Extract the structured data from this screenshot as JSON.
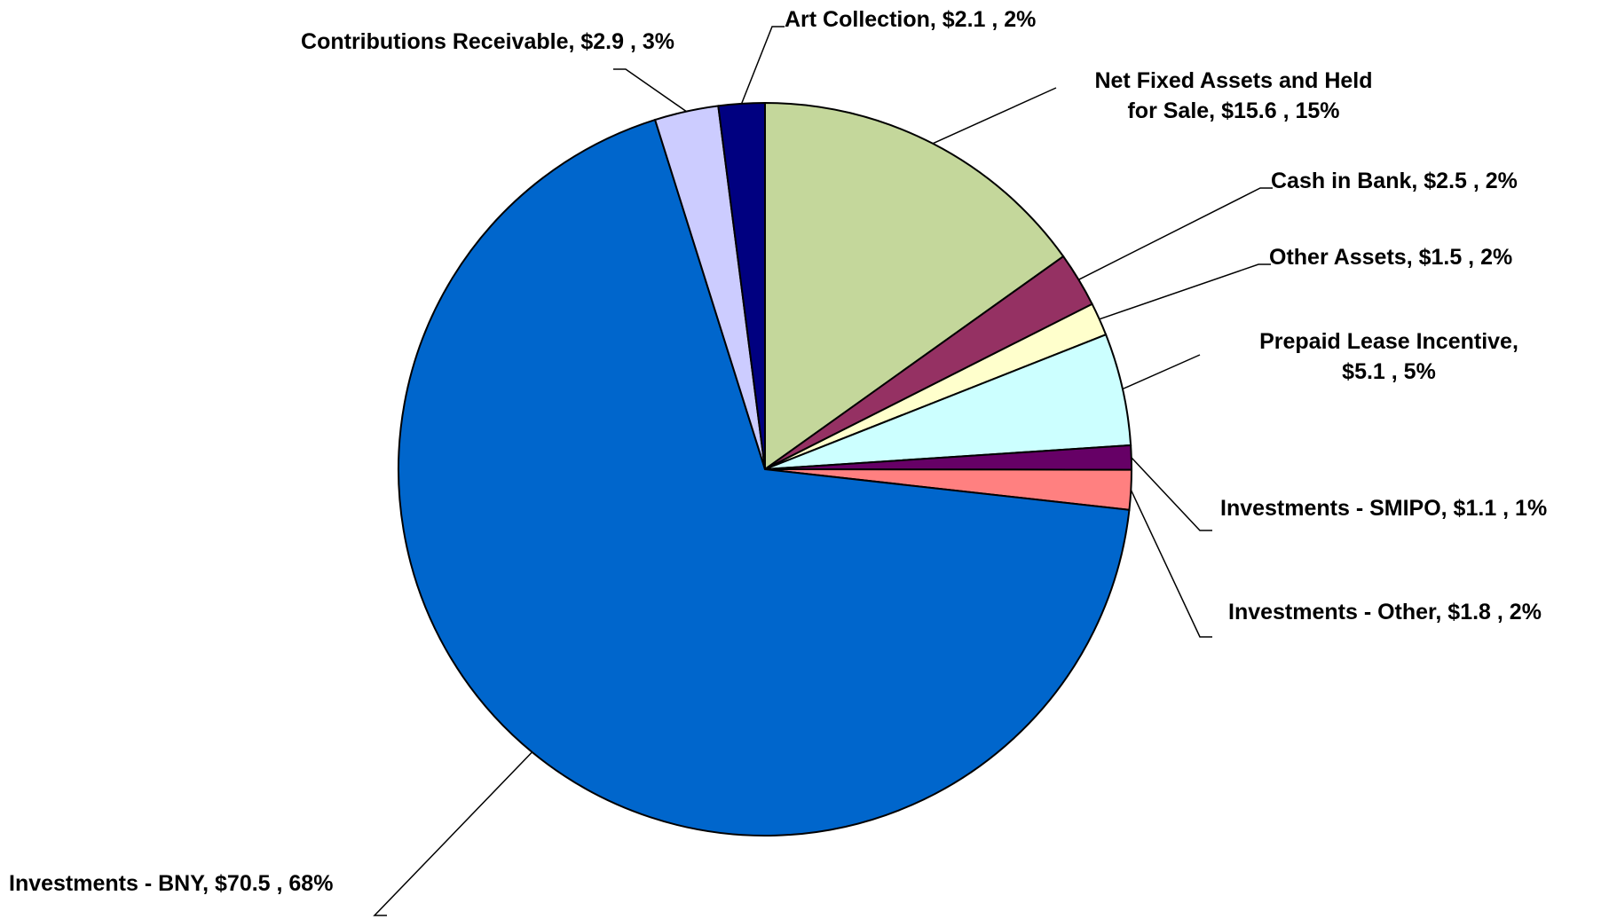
{
  "chart_data": {
    "type": "pie",
    "title": "",
    "slices": [
      {
        "name": "Net Fixed Assets and Held for Sale",
        "label_lines": [
          "Net Fixed Assets and Held",
          "for Sale,  $15.6 , 15%"
        ],
        "value": 15.6,
        "percent": 15,
        "color": "#C4D79B"
      },
      {
        "name": "Cash in Bank",
        "label_lines": [
          "Cash in Bank,  $2.5 , 2%"
        ],
        "value": 2.5,
        "percent": 2,
        "color": "#953163"
      },
      {
        "name": "Other Assets",
        "label_lines": [
          "Other Assets,  $1.5 , 2%"
        ],
        "value": 1.5,
        "percent": 2,
        "color": "#FFFFCC"
      },
      {
        "name": "Prepaid Lease Incentive",
        "label_lines": [
          "Prepaid Lease Incentive,",
          "$5.1 , 5%"
        ],
        "value": 5.1,
        "percent": 5,
        "color": "#CCFFFF"
      },
      {
        "name": "Investments - SMIPO",
        "label_lines": [
          "Investments - SMIPO,  $1.1 , 1%"
        ],
        "value": 1.1,
        "percent": 1,
        "color": "#660066"
      },
      {
        "name": "Investments - Other",
        "label_lines": [
          "Investments - Other,  $1.8 , 2%"
        ],
        "value": 1.8,
        "percent": 2,
        "color": "#FF8080"
      },
      {
        "name": "Investments - BNY",
        "label_lines": [
          "Investments - BNY,  $70.5 , 68%"
        ],
        "value": 70.5,
        "percent": 68,
        "color": "#0066CC"
      },
      {
        "name": "Contributions Receivable",
        "label_lines": [
          "Contributions Receivable,  $2.9 , 3%"
        ],
        "value": 2.9,
        "percent": 3,
        "color": "#CCCCFF"
      },
      {
        "name": "Art Collection",
        "label_lines": [
          "Art Collection,  $2.1 , 2%"
        ],
        "value": 2.1,
        "percent": 2,
        "color": "#000080"
      }
    ],
    "start_angle": "12 o'clock",
    "direction": "clockwise",
    "legend": "none"
  }
}
